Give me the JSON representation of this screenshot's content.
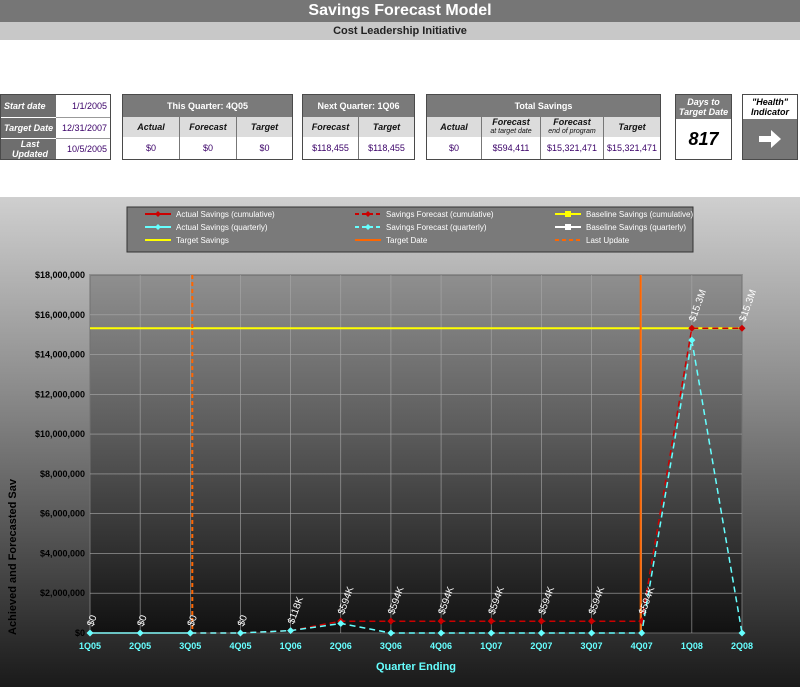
{
  "header": {
    "title": "Savings Forecast Model",
    "subtitle": "Cost Leadership Initiative"
  },
  "dates": {
    "start_label": "Start date",
    "start_value": "1/1/2005",
    "target_label": "Target Date",
    "target_value": "12/31/2007",
    "updated_label": "Last Updated",
    "updated_value": "10/5/2005"
  },
  "this_quarter": {
    "title": "This Quarter: 4Q05",
    "cols": [
      "Actual",
      "Forecast",
      "Target"
    ],
    "values": [
      "$0",
      "$0",
      "$0"
    ]
  },
  "next_quarter": {
    "title": "Next Quarter: 1Q06",
    "cols": [
      "Forecast",
      "Target"
    ],
    "values": [
      "$118,455",
      "$118,455"
    ]
  },
  "total_savings": {
    "title": "Total Savings",
    "actual_label": "Actual",
    "forecast_target_label": "Forecast",
    "forecast_target_sub": "at target date",
    "forecast_end_label": "Forecast",
    "forecast_end_sub": "end of program",
    "target_label": "Target",
    "values": [
      "$0",
      "$594,411",
      "$15,321,471",
      "$15,321,471"
    ]
  },
  "days": {
    "label": "Days to Target Date",
    "value": "817"
  },
  "health": {
    "label": "\"Health\" Indicator",
    "icon": "arrow-right-icon"
  },
  "legend": [
    {
      "label": "Actual Savings (cumulative)",
      "color": "#cc0000",
      "style": "solid",
      "marker": "diamond"
    },
    {
      "label": "Savings Forecast (cumulative)",
      "color": "#cc0000",
      "style": "dashed",
      "marker": "diamond"
    },
    {
      "label": "Baseline Savings (cumulative)",
      "color": "#ffff00",
      "style": "solid",
      "marker": "square"
    },
    {
      "label": "Actual Savings (quarterly)",
      "color": "#66ffff",
      "style": "solid",
      "marker": "diamond"
    },
    {
      "label": "Savings Forecast (quarterly)",
      "color": "#66ffff",
      "style": "dashed",
      "marker": "diamond"
    },
    {
      "label": "Baseline Savings (quarterly)",
      "color": "#ffffff",
      "style": "solid",
      "marker": "square"
    },
    {
      "label": "Target Savings",
      "color": "#ffff00",
      "style": "solid",
      "marker": "none"
    },
    {
      "label": "Target Date",
      "color": "#ff6600",
      "style": "solid",
      "marker": "none"
    },
    {
      "label": "Last Update",
      "color": "#ff6600",
      "style": "dashed",
      "marker": "none"
    }
  ],
  "chart_data": {
    "type": "line",
    "xlabel": "Quarter Ending",
    "ylabel": "Achieved and Forecasted Sav",
    "ylim": [
      0,
      18000000
    ],
    "yticks": [
      0,
      2000000,
      4000000,
      6000000,
      8000000,
      10000000,
      12000000,
      14000000,
      16000000,
      18000000
    ],
    "ytick_labels": [
      "$0",
      "$2,000,000",
      "$4,000,000",
      "$6,000,000",
      "$8,000,000",
      "$10,000,000",
      "$12,000,000",
      "$14,000,000",
      "$16,000,000",
      "$18,000,000"
    ],
    "categories": [
      "1Q05",
      "2Q05",
      "3Q05",
      "4Q05",
      "1Q06",
      "2Q06",
      "3Q06",
      "4Q06",
      "1Q07",
      "2Q07",
      "3Q07",
      "4Q07",
      "1Q08",
      "2Q08"
    ],
    "grid": true,
    "legend_position": "top",
    "target_savings": 15321471,
    "target_date_category": "4Q07",
    "last_update_category": "3Q05",
    "series": [
      {
        "name": "Actual Savings (cumulative)",
        "color": "#cc0000",
        "dashed": false,
        "values": [
          0,
          0,
          0,
          null,
          null,
          null,
          null,
          null,
          null,
          null,
          null,
          null,
          null,
          null
        ]
      },
      {
        "name": "Savings Forecast (cumulative)",
        "color": "#cc0000",
        "dashed": true,
        "values": [
          null,
          null,
          0,
          0,
          118455,
          594411,
          594411,
          594411,
          594411,
          594411,
          594411,
          594411,
          15321471,
          15321471
        ]
      },
      {
        "name": "Actual Savings (quarterly)",
        "color": "#66ffff",
        "dashed": false,
        "values": [
          0,
          0,
          0,
          null,
          null,
          null,
          null,
          null,
          null,
          null,
          null,
          null,
          null,
          null
        ]
      },
      {
        "name": "Savings Forecast (quarterly)",
        "color": "#66ffff",
        "dashed": true,
        "values": [
          null,
          null,
          0,
          0,
          118455,
          475956,
          0,
          0,
          0,
          0,
          0,
          0,
          14727060,
          0
        ]
      }
    ],
    "data_labels": [
      {
        "category": "1Q05",
        "text": "$0",
        "value": 0
      },
      {
        "category": "2Q05",
        "text": "$0",
        "value": 0
      },
      {
        "category": "3Q05",
        "text": "$0",
        "value": 0
      },
      {
        "category": "4Q05",
        "text": "$0",
        "value": 0
      },
      {
        "category": "1Q06",
        "text": "$118K",
        "value": 118455
      },
      {
        "category": "2Q06",
        "text": "$594K",
        "value": 594411
      },
      {
        "category": "3Q06",
        "text": "$594K",
        "value": 594411
      },
      {
        "category": "4Q06",
        "text": "$594K",
        "value": 594411
      },
      {
        "category": "1Q07",
        "text": "$594K",
        "value": 594411
      },
      {
        "category": "2Q07",
        "text": "$594K",
        "value": 594411
      },
      {
        "category": "3Q07",
        "text": "$594K",
        "value": 594411
      },
      {
        "category": "4Q07",
        "text": "$594K",
        "value": 594411
      },
      {
        "category": "1Q08",
        "text": "$15.3M",
        "value": 15321471
      },
      {
        "category": "2Q08",
        "text": "$15.3M",
        "value": 15321471
      }
    ]
  }
}
